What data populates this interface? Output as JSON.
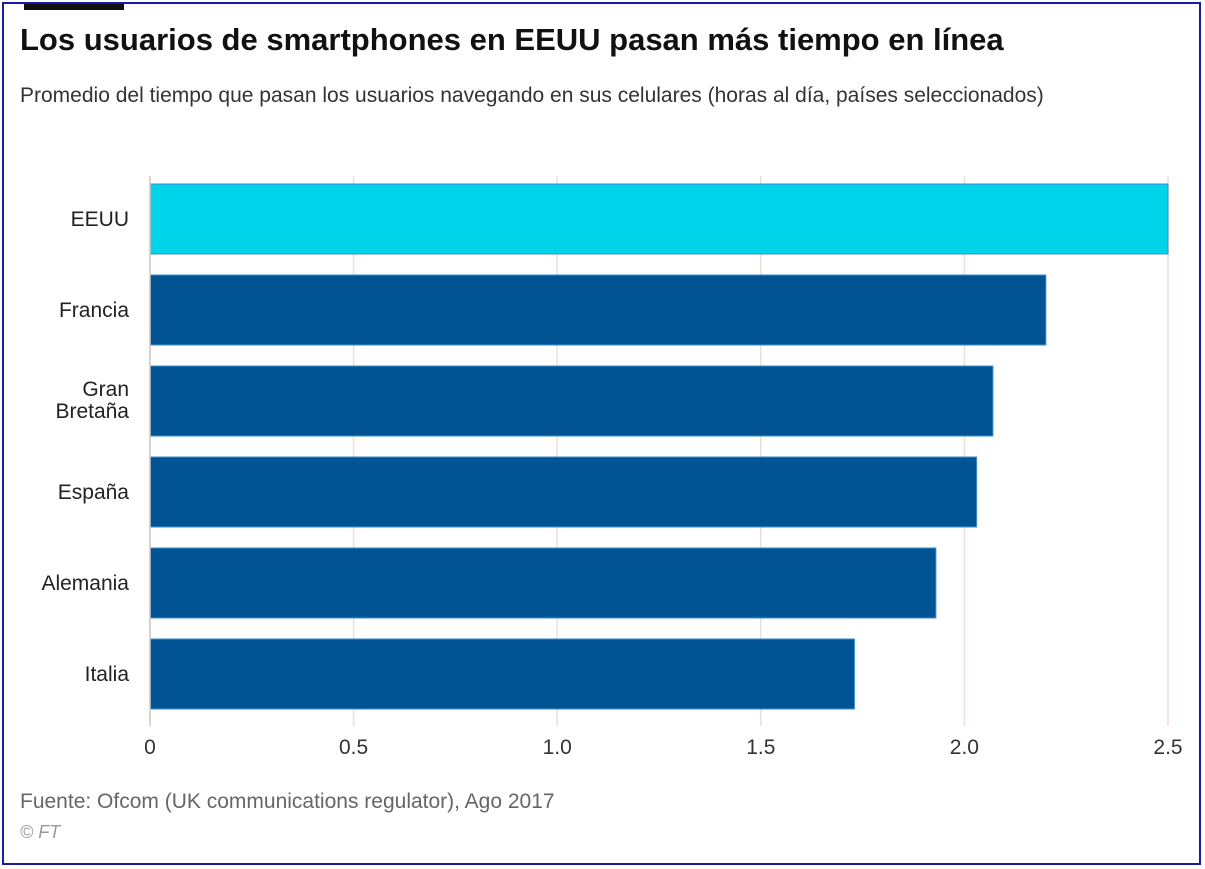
{
  "header": {
    "title": "Los usuarios de smartphones en EEUU pasan más tiempo en línea",
    "subtitle": "Promedio del tiempo que pasan los usuarios navegando en sus celulares (horas al día, países seleccionados)"
  },
  "footer": {
    "source": "Fuente: Ofcom (UK communications regulator), Ago 2017",
    "copyright": "© FT"
  },
  "colors": {
    "highlight": "#00d4ea",
    "bar": "#005493",
    "grid": "#f0dcd8",
    "frame": "#1a1aa6"
  },
  "chart_data": {
    "type": "bar",
    "orientation": "horizontal",
    "categories": [
      "EEUU",
      "Francia",
      "Gran Bretaña",
      "España",
      "Alemania",
      "Italia"
    ],
    "values": [
      2.5,
      2.2,
      2.07,
      2.03,
      1.93,
      1.73
    ],
    "highlight_category": "EEUU",
    "xlim": [
      0,
      2.5
    ],
    "xticks": [
      "0",
      "0.5",
      "1.0",
      "1.5",
      "2.0",
      "2.5"
    ],
    "grid": "vertical"
  }
}
